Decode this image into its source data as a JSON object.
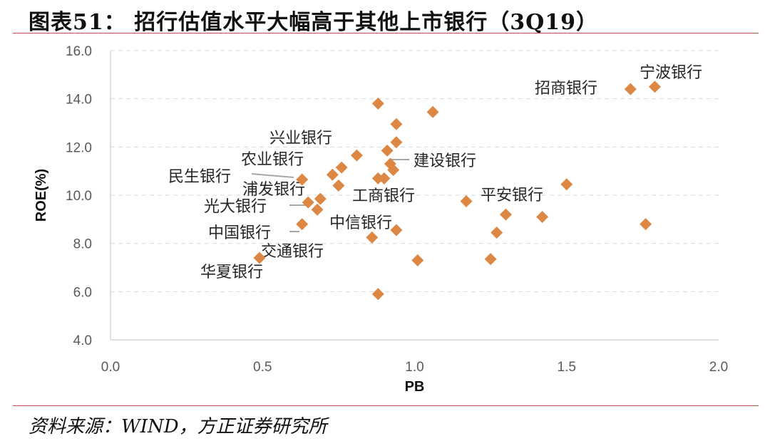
{
  "title": "图表51：  招行估值水平大幅高于其他上市银行（3Q19）",
  "source": "资料来源：WIND，方正证券研究所",
  "chart_data": {
    "type": "scatter",
    "xlabel": "PB",
    "ylabel": "ROE(%)",
    "xlim": [
      0,
      2
    ],
    "ylim": [
      4,
      16
    ],
    "xticks": [
      "0.0",
      "0.5",
      "1.0",
      "1.5",
      "2.0"
    ],
    "yticks": [
      "4.0",
      "6.0",
      "8.0",
      "10.0",
      "12.0",
      "14.0",
      "16.0"
    ],
    "grid": "horizontal dashed",
    "marker_color": "#dd8744",
    "points": [
      [
        1.79,
        14.5
      ],
      [
        1.71,
        14.4
      ],
      [
        0.88,
        13.8
      ],
      [
        1.06,
        13.45
      ],
      [
        0.94,
        12.95
      ],
      [
        0.94,
        12.2
      ],
      [
        0.91,
        11.85
      ],
      [
        0.81,
        11.65
      ],
      [
        0.92,
        11.3
      ],
      [
        0.76,
        11.15
      ],
      [
        0.93,
        11.05
      ],
      [
        0.73,
        10.85
      ],
      [
        0.88,
        10.7
      ],
      [
        0.9,
        10.7
      ],
      [
        0.63,
        10.65
      ],
      [
        1.5,
        10.45
      ],
      [
        0.75,
        10.4
      ],
      [
        0.69,
        9.85
      ],
      [
        0.65,
        9.7
      ],
      [
        1.17,
        9.75
      ],
      [
        0.68,
        9.4
      ],
      [
        1.3,
        9.2
      ],
      [
        1.42,
        9.1
      ],
      [
        0.63,
        8.8
      ],
      [
        1.76,
        8.8
      ],
      [
        0.94,
        8.55
      ],
      [
        1.27,
        8.45
      ],
      [
        0.86,
        8.25
      ],
      [
        0.49,
        7.4
      ],
      [
        1.25,
        7.35
      ],
      [
        1.01,
        7.3
      ],
      [
        0.88,
        5.9
      ]
    ],
    "annotations": [
      {
        "text": "宁波银行",
        "x": 1.79,
        "y": 14.5
      },
      {
        "text": "招商银行",
        "x": 1.71,
        "y": 14.4
      },
      {
        "text": "兴业银行",
        "x": 0.81,
        "y": 11.65
      },
      {
        "text": "建设银行",
        "x": 0.92,
        "y": 11.3
      },
      {
        "text": "农业银行",
        "x": 0.73,
        "y": 10.85
      },
      {
        "text": "民生银行",
        "x": 0.63,
        "y": 10.65
      },
      {
        "text": "浦发银行",
        "x": 0.69,
        "y": 9.85
      },
      {
        "text": "工商银行",
        "x": 0.88,
        "y": 10.7
      },
      {
        "text": "平安银行",
        "x": 1.5,
        "y": 10.45
      },
      {
        "text": "光大银行",
        "x": 0.65,
        "y": 9.7
      },
      {
        "text": "中信银行",
        "x": 0.94,
        "y": 8.55
      },
      {
        "text": "中国银行",
        "x": 0.63,
        "y": 8.8
      },
      {
        "text": "交通银行",
        "x": 0.68,
        "y": 9.4
      },
      {
        "text": "华夏银行",
        "x": 0.49,
        "y": 7.4
      }
    ]
  }
}
